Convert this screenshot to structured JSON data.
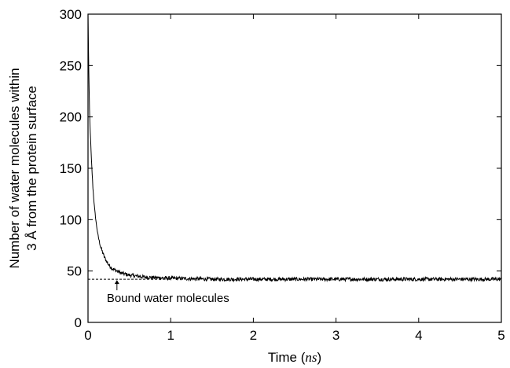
{
  "chart_data": {
    "type": "line",
    "xlabel_prefix": "Time (",
    "xlabel_unit": "ns",
    "xlabel_suffix": ")",
    "ylabel_line1": "Number of water molecules within",
    "ylabel_line2": "3 Å from the protein surface",
    "xlim": [
      0,
      5
    ],
    "ylim": [
      0,
      300
    ],
    "x_ticks": [
      "0",
      "1",
      "2",
      "3",
      "4",
      "5"
    ],
    "y_ticks": [
      "0",
      "50",
      "100",
      "150",
      "200",
      "250",
      "300"
    ],
    "grid": false,
    "series": [
      {
        "x": [
          0,
          0.01,
          0.02,
          0.04,
          0.06,
          0.08,
          0.1,
          0.12,
          0.15,
          0.2,
          0.25,
          0.3,
          0.4,
          0.5,
          0.7,
          1.0,
          1.5,
          2.0,
          2.5,
          3.0,
          3.5,
          4.0,
          4.5,
          5.0
        ],
        "y": [
          300,
          240,
          200,
          160,
          130,
          110,
          96,
          85,
          74,
          63,
          56,
          52,
          48,
          46,
          44,
          43,
          42,
          42,
          42,
          42,
          42,
          42,
          42,
          42
        ]
      }
    ],
    "reference_line": {
      "y": 42,
      "x_end": 1.0,
      "style": "dashed"
    },
    "annotation": {
      "text": "Bound water molecules",
      "x": 0.35,
      "y": 42
    }
  }
}
